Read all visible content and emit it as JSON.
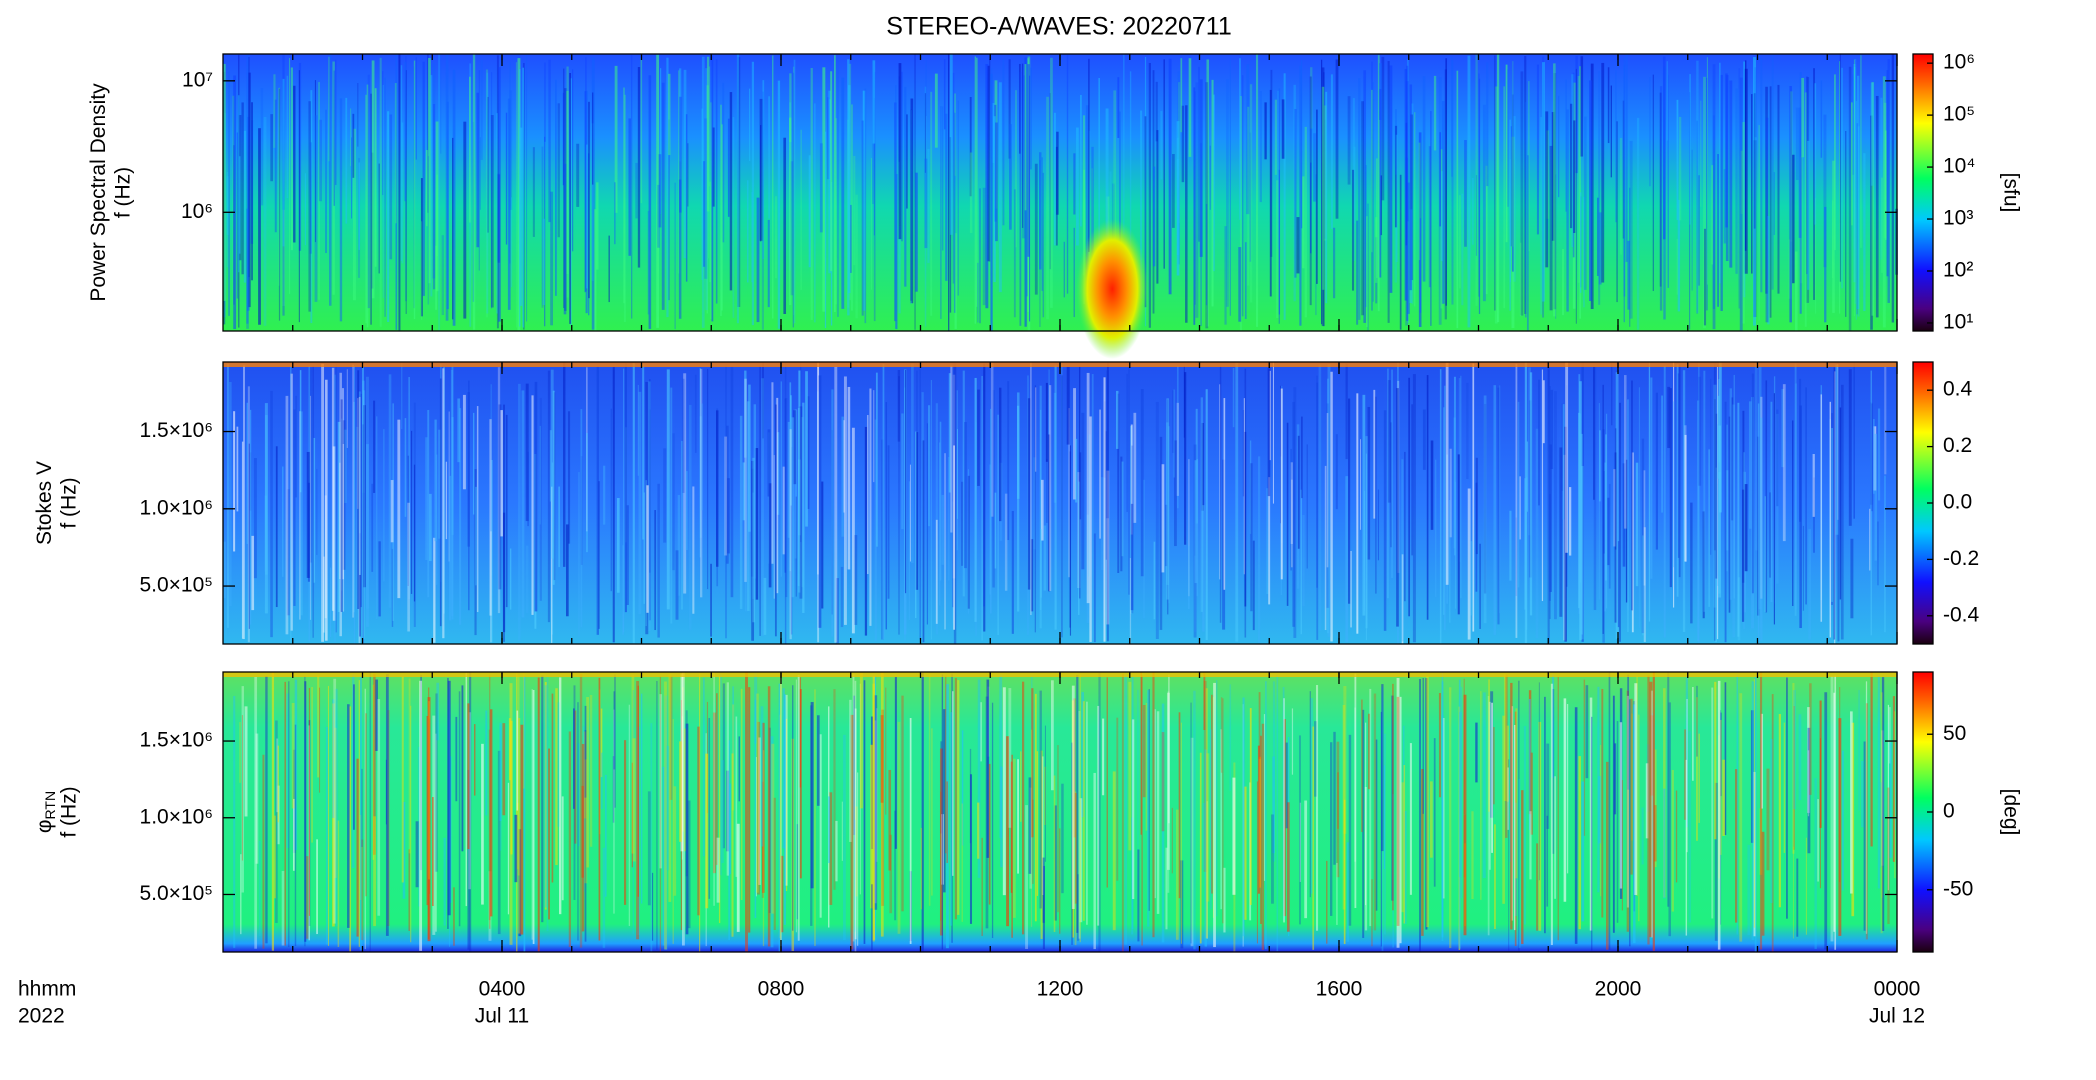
{
  "chart_data": [
    {
      "type": "heatmap",
      "title": "STEREO-A/WAVES: 20220711",
      "ylabel": [
        "Power Spectral Density",
        "f (Hz)"
      ],
      "ylog": true,
      "ylim": [
        125000,
        16000000
      ],
      "yticks": [
        {
          "value": 1000000,
          "label": "10⁶"
        },
        {
          "value": 10000000,
          "label": "10⁷"
        }
      ],
      "colorbar_log": true,
      "colorbar_lim": [
        7,
        1500000
      ],
      "colorbar_ticks": [
        {
          "value": 10,
          "label": "10¹"
        },
        {
          "value": 100,
          "label": "10²"
        },
        {
          "value": 1000,
          "label": "10³"
        },
        {
          "value": 10000,
          "label": "10⁴"
        },
        {
          "value": 100000,
          "label": "10⁵"
        },
        {
          "value": 1000000,
          "label": "10⁶"
        }
      ],
      "colorbar_label": "[sfu]"
    },
    {
      "type": "heatmap",
      "ylabel": [
        "Stokes V",
        "f (Hz)"
      ],
      "ylog": false,
      "ylim": [
        125000,
        1950000
      ],
      "yticks": [
        {
          "value": 500000,
          "label": "5.0×10⁵"
        },
        {
          "value": 1000000,
          "label": "1.0×10⁶"
        },
        {
          "value": 1500000,
          "label": "1.5×10⁶"
        }
      ],
      "colorbar_log": false,
      "colorbar_lim": [
        -0.5,
        0.5
      ],
      "colorbar_ticks": [
        -0.4,
        -0.2,
        {
          "value": 0,
          "label": "0.0"
        },
        0.2,
        0.4
      ]
    },
    {
      "type": "heatmap",
      "ylabel": [
        "φ",
        "f (Hz)"
      ],
      "ylabel_sub": "RTN",
      "ylog": false,
      "ylim": [
        125000,
        1950000
      ],
      "yticks": [
        {
          "value": 500000,
          "label": "5.0×10⁵"
        },
        {
          "value": 1000000,
          "label": "1.0×10⁶"
        },
        {
          "value": 1500000,
          "label": "1.5×10⁶"
        }
      ],
      "colorbar_log": false,
      "colorbar_lim": [
        -90,
        90
      ],
      "colorbar_ticks": [
        -50,
        0,
        50
      ],
      "colorbar_label": "[deg]",
      "xlim": [
        0,
        24
      ],
      "xticks": [
        {
          "value": 4,
          "label": "0400"
        },
        {
          "value": 8,
          "label": "0800"
        },
        {
          "value": 12,
          "label": "1200"
        },
        {
          "value": 16,
          "label": "1600"
        },
        {
          "value": 20,
          "label": "2000"
        },
        {
          "value": 24,
          "label": "0000"
        }
      ],
      "xdate_labels": [
        {
          "value": 4,
          "label": "Jul 11"
        },
        {
          "value": 24,
          "label": "Jul 12"
        }
      ],
      "xunit_labels": [
        "hhmm",
        "2022"
      ]
    }
  ]
}
